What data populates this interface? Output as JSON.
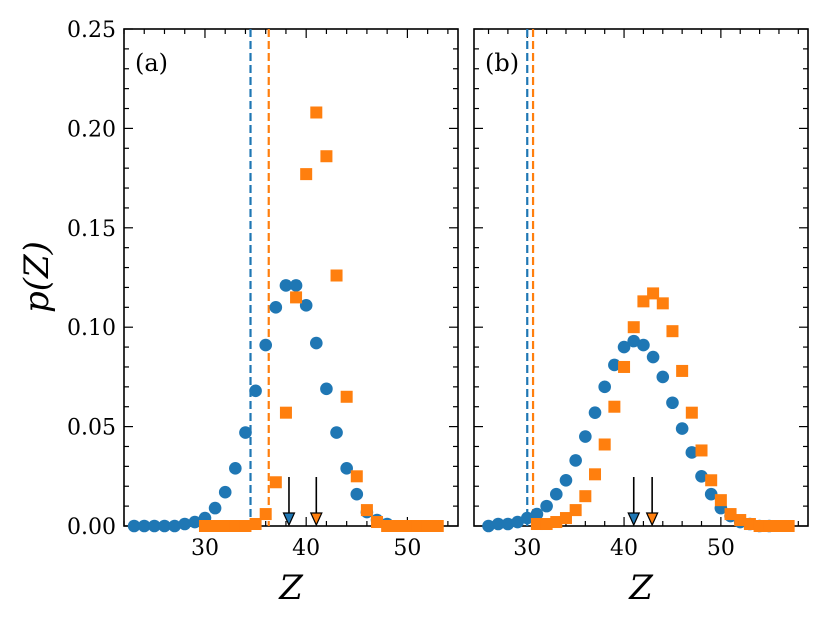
{
  "colors": {
    "blue": "#1f77b4",
    "orange": "#ff7f0e",
    "axis": "#000000"
  },
  "ylabel": "p(Z)",
  "chart_data": [
    {
      "type": "scatter",
      "panel_label": "(a)",
      "xlabel": "Z",
      "ylabel": "p(Z)",
      "xlim": [
        22,
        55
      ],
      "ylim": [
        0,
        0.25
      ],
      "xticks": [
        30,
        40,
        50
      ],
      "yticks": [
        0.0,
        0.05,
        0.1,
        0.15,
        0.2,
        0.25
      ],
      "ytick_labels": [
        "0.00",
        "0.05",
        "0.10",
        "0.15",
        "0.20",
        "0.25"
      ],
      "series": [
        {
          "name": "blue circles",
          "marker": "circle",
          "color": "#1f77b4",
          "x": [
            23,
            24,
            25,
            26,
            27,
            28,
            29,
            30,
            31,
            32,
            33,
            34,
            35,
            36,
            37,
            38,
            39,
            40,
            41,
            42,
            43,
            44,
            45,
            46,
            47,
            48
          ],
          "y": [
            0.0,
            0.0,
            0.0,
            0.0,
            0.0,
            0.001,
            0.002,
            0.004,
            0.009,
            0.017,
            0.029,
            0.047,
            0.068,
            0.091,
            0.11,
            0.121,
            0.121,
            0.111,
            0.092,
            0.069,
            0.047,
            0.029,
            0.016,
            0.007,
            0.003,
            0.001
          ]
        },
        {
          "name": "orange squares",
          "marker": "square",
          "color": "#ff7f0e",
          "x": [
            30,
            31,
            32,
            33,
            34,
            35,
            36,
            37,
            38,
            39,
            40,
            41,
            42,
            43,
            44,
            45,
            46,
            47,
            48,
            49,
            50,
            51,
            52,
            53
          ],
          "y": [
            0.0,
            0.0,
            0.0,
            0.0,
            0.0,
            0.001,
            0.006,
            0.022,
            0.057,
            0.115,
            0.177,
            0.208,
            0.186,
            0.126,
            0.065,
            0.025,
            0.008,
            0.002,
            0.0,
            0.0,
            0.0,
            0.0,
            0.0,
            0.0
          ]
        }
      ],
      "vlines": [
        {
          "x": 34.5,
          "color": "#1f77b4",
          "style": "dashed"
        },
        {
          "x": 36.3,
          "color": "#ff7f0e",
          "style": "dashed"
        }
      ],
      "arrows": [
        {
          "x": 38.3,
          "color": "#1f77b4"
        },
        {
          "x": 41.0,
          "color": "#ff7f0e"
        }
      ]
    },
    {
      "type": "scatter",
      "panel_label": "(b)",
      "xlabel": "Z",
      "ylabel": "",
      "xlim": [
        24.5,
        59
      ],
      "ylim": [
        0,
        0.25
      ],
      "xticks": [
        30,
        40,
        50
      ],
      "yticks": [
        0.0,
        0.05,
        0.1,
        0.15,
        0.2,
        0.25
      ],
      "ytick_labels": [],
      "series": [
        {
          "name": "blue circles",
          "marker": "circle",
          "color": "#1f77b4",
          "x": [
            26,
            27,
            28,
            29,
            30,
            31,
            32,
            33,
            34,
            35,
            36,
            37,
            38,
            39,
            40,
            41,
            42,
            43,
            44,
            45,
            46,
            47,
            48,
            49,
            50,
            51,
            52,
            53,
            54,
            55
          ],
          "y": [
            0.0,
            0.001,
            0.001,
            0.002,
            0.004,
            0.006,
            0.01,
            0.016,
            0.023,
            0.033,
            0.045,
            0.057,
            0.07,
            0.081,
            0.09,
            0.093,
            0.091,
            0.085,
            0.075,
            0.062,
            0.049,
            0.037,
            0.025,
            0.016,
            0.009,
            0.005,
            0.002,
            0.001,
            0.0,
            0.0
          ]
        },
        {
          "name": "orange squares",
          "marker": "square",
          "color": "#ff7f0e",
          "x": [
            31,
            32,
            33,
            34,
            35,
            36,
            37,
            38,
            39,
            40,
            41,
            42,
            43,
            44,
            45,
            46,
            47,
            48,
            49,
            50,
            51,
            52,
            53,
            54,
            55,
            56,
            57
          ],
          "y": [
            0.001,
            0.001,
            0.002,
            0.004,
            0.008,
            0.015,
            0.026,
            0.041,
            0.06,
            0.08,
            0.1,
            0.113,
            0.117,
            0.112,
            0.098,
            0.078,
            0.057,
            0.038,
            0.023,
            0.013,
            0.006,
            0.003,
            0.001,
            0.0,
            0.0,
            0.0,
            0.0
          ]
        }
      ],
      "vlines": [
        {
          "x": 30.0,
          "color": "#1f77b4",
          "style": "dashed"
        },
        {
          "x": 30.6,
          "color": "#ff7f0e",
          "style": "dashed"
        }
      ],
      "arrows": [
        {
          "x": 41.0,
          "color": "#1f77b4"
        },
        {
          "x": 42.9,
          "color": "#ff7f0e"
        }
      ]
    }
  ]
}
